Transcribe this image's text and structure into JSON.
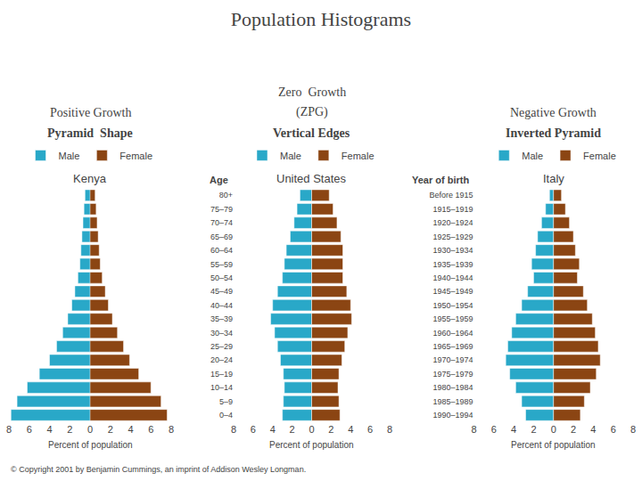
{
  "title": "Population Histograms",
  "annotations": [
    "© Copyright 2001 by Benjamin Cummings, an imprint of Addison Wesley Longman."
  ],
  "chart_data": [
    {
      "type": "bar",
      "orientation": "horizontal",
      "title": "Kenya",
      "subtitle": [
        "Positive Growth",
        "Pyramid  Shape"
      ],
      "categories": [
        "80+",
        "75–79",
        "70–74",
        "65–69",
        "60–64",
        "55–59",
        "50–54",
        "45–49",
        "40–44",
        "35–39",
        "30–34",
        "25–29",
        "20–24",
        "15–19",
        "10–14",
        "5–9",
        "0–4"
      ],
      "series": [
        {
          "name": "Male",
          "color": "#29A8C8",
          "values": [
            0.5,
            0.6,
            0.7,
            0.8,
            0.9,
            1.0,
            1.2,
            1.5,
            1.8,
            2.2,
            2.7,
            3.3,
            4.0,
            5.0,
            6.2,
            7.2,
            7.8
          ]
        },
        {
          "name": "Female",
          "color": "#8B4513",
          "values": [
            0.5,
            0.6,
            0.7,
            0.8,
            0.9,
            1.0,
            1.2,
            1.5,
            1.8,
            2.2,
            2.7,
            3.3,
            3.9,
            4.8,
            6.0,
            7.0,
            7.6
          ]
        }
      ],
      "xlabel": "Percent of population",
      "xlim": [
        0,
        8
      ],
      "xticks": [
        0,
        2,
        4,
        6,
        8
      ],
      "tick_labels": "x",
      "grid": false,
      "legend": "top"
    },
    {
      "type": "bar",
      "orientation": "horizontal",
      "title": "United States",
      "subtitle": [
        "Zero  Growth",
        "(ZPG)",
        "Vertical Edges"
      ],
      "ylabel": "Age",
      "categories": [
        "80+",
        "75–79",
        "70–74",
        "65–69",
        "60–64",
        "55–59",
        "50–54",
        "45–49",
        "40–44",
        "35–39",
        "30–34",
        "25–29",
        "20–24",
        "15–19",
        "10–14",
        "5–9",
        "0–4"
      ],
      "series": [
        {
          "name": "Male",
          "color": "#29A8C8",
          "values": [
            1.2,
            1.5,
            1.8,
            2.2,
            2.6,
            2.8,
            3.0,
            3.5,
            4.0,
            4.2,
            3.8,
            3.5,
            3.2,
            2.9,
            2.8,
            2.9,
            3.0
          ]
        },
        {
          "name": "Female",
          "color": "#8B4513",
          "values": [
            1.8,
            2.2,
            2.6,
            3.0,
            3.2,
            3.2,
            3.2,
            3.6,
            4.0,
            4.1,
            3.7,
            3.4,
            3.1,
            2.8,
            2.7,
            2.8,
            2.9
          ]
        }
      ],
      "xlabel": "Percent of population",
      "xlim": [
        0,
        8
      ],
      "xticks": [
        0,
        2,
        4,
        6,
        8
      ],
      "grid": false,
      "legend": "top"
    },
    {
      "type": "bar",
      "orientation": "horizontal",
      "title": "Italy",
      "subtitle": [
        "Negative Growth",
        "Inverted Pyramid"
      ],
      "ylabel": "Year of birth",
      "categories": [
        "Before 1915",
        "1915–1919",
        "1920–1924",
        "1925–1929",
        "1930–1934",
        "1935–1939",
        "1940–1944",
        "1945–1949",
        "1950–1954",
        "1955–1959",
        "1960–1964",
        "1965–1969",
        "1970–1974",
        "1975–1979",
        "1980–1984",
        "1985–1989",
        "1990–1994"
      ],
      "series": [
        {
          "name": "Male",
          "color": "#29A8C8",
          "values": [
            0.4,
            0.8,
            1.2,
            1.6,
            1.8,
            2.2,
            2.0,
            2.6,
            3.2,
            3.8,
            4.2,
            4.6,
            4.8,
            4.4,
            3.8,
            3.2,
            2.8
          ]
        },
        {
          "name": "Female",
          "color": "#8B4513",
          "values": [
            0.8,
            1.2,
            1.6,
            2.0,
            2.2,
            2.6,
            2.4,
            3.0,
            3.4,
            3.9,
            4.2,
            4.5,
            4.7,
            4.3,
            3.7,
            3.1,
            2.7
          ]
        }
      ],
      "xlabel": "Percent of population",
      "xlim": [
        0,
        8
      ],
      "xticks": [
        0,
        2,
        4,
        6,
        8
      ],
      "grid": false,
      "legend": "top"
    }
  ]
}
